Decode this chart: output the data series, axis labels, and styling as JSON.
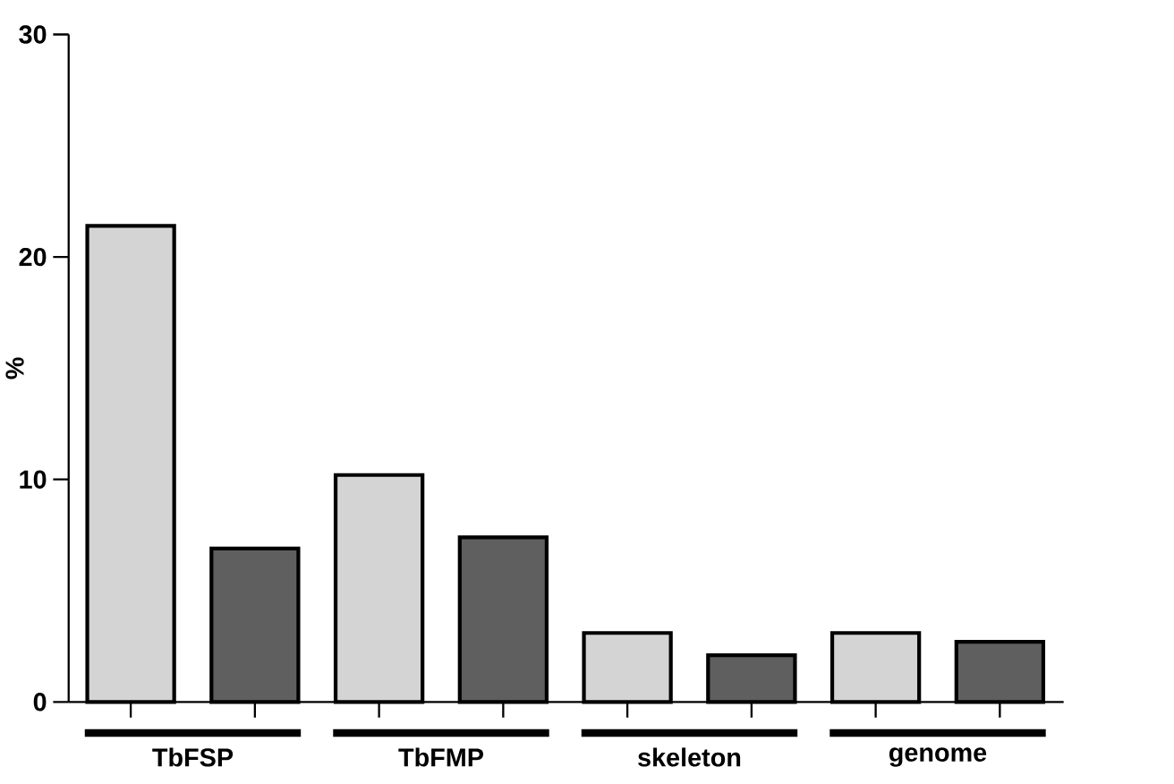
{
  "chart_data": {
    "type": "bar",
    "ylabel": "%",
    "categories": [
      "TbFSP",
      "TbFMP",
      "skeleton",
      "genome"
    ],
    "series": [
      {
        "color": "#d4d4d4",
        "values": [
          21.4,
          10.2,
          3.1,
          3.1
        ]
      },
      {
        "color": "#5f5f5f",
        "values": [
          6.9,
          7.4,
          2.1,
          2.7
        ]
      }
    ],
    "ylim": [
      0,
      30
    ],
    "yticks": [
      0,
      10,
      20,
      30
    ]
  }
}
